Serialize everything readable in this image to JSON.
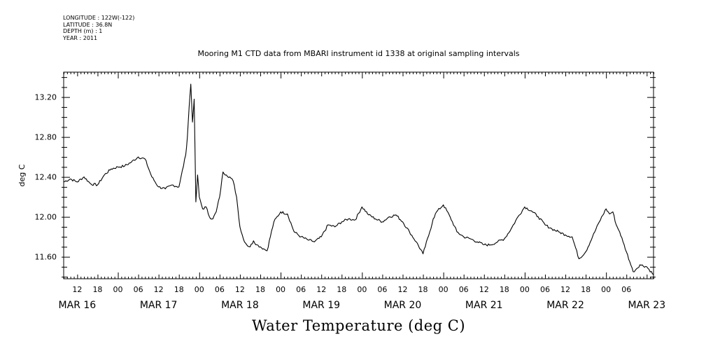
{
  "header": {
    "longitude": "LONGITUDE : 122W(-122)",
    "latitude": "LATITUDE : 36.8N",
    "depth": "DEPTH (m) : 1",
    "year": "YEAR : 2011"
  },
  "chart_data": {
    "type": "line",
    "title": "Mooring M1 CTD data from MBARI instrument id 1338 at original sampling intervals",
    "xlabel": "",
    "ylabel": "deg C",
    "footer": "Water Temperature (deg C)",
    "ylim": [
      11.38,
      13.45
    ],
    "xlim_hours": [
      -16,
      158
    ],
    "y_ticks": [
      "11.60",
      "12.00",
      "12.40",
      "12.80",
      "13.20"
    ],
    "x_hour_ticks": [
      "12",
      "18",
      "00",
      "06",
      "12",
      "18",
      "00",
      "06",
      "12",
      "18",
      "00",
      "06",
      "12",
      "18",
      "00",
      "06",
      "12",
      "18",
      "00",
      "06",
      "12",
      "18",
      "00",
      "06",
      "12",
      "18",
      "00",
      "06"
    ],
    "x_day_labels": [
      "MAR 16",
      "MAR 17",
      "MAR 18",
      "MAR 19",
      "MAR 20",
      "MAR 21",
      "MAR 22",
      "MAR 23"
    ],
    "series": [
      {
        "x": [
          -16,
          -14,
          -12,
          -10,
          -8,
          -6,
          -4,
          -2,
          0,
          2,
          4,
          6,
          8,
          10,
          12,
          14,
          16,
          18,
          20,
          20.5,
          21,
          21.5,
          22,
          22.5,
          23,
          23.5,
          24,
          25,
          26,
          27,
          28,
          29,
          30,
          31,
          32,
          33,
          34,
          35,
          36,
          37,
          38,
          39,
          40,
          41,
          42,
          43,
          44,
          46,
          48,
          50,
          52,
          54,
          56,
          58,
          60,
          62,
          64,
          66,
          68,
          70,
          72,
          74,
          76,
          78,
          80,
          82,
          84,
          86,
          88,
          90,
          92,
          93,
          94,
          96,
          98,
          100,
          102,
          104,
          106,
          108,
          110,
          112,
          114,
          116,
          118,
          120,
          122,
          124,
          126,
          128,
          130,
          132,
          134,
          136,
          138,
          140,
          142,
          144,
          145,
          146,
          147,
          148,
          149,
          150,
          151,
          152,
          153,
          154,
          156,
          158
        ],
        "y": [
          12.35,
          12.38,
          12.35,
          12.4,
          12.33,
          12.32,
          12.42,
          12.48,
          12.5,
          12.51,
          12.55,
          12.6,
          12.58,
          12.4,
          12.3,
          12.28,
          12.32,
          12.3,
          12.62,
          12.8,
          13.1,
          13.33,
          12.95,
          13.18,
          12.15,
          12.42,
          12.2,
          12.08,
          12.1,
          12.0,
          11.98,
          12.05,
          12.2,
          12.45,
          12.42,
          12.4,
          12.36,
          12.2,
          11.9,
          11.78,
          11.72,
          11.7,
          11.76,
          11.72,
          11.7,
          11.68,
          11.66,
          11.95,
          12.05,
          12.03,
          11.85,
          11.8,
          11.77,
          11.75,
          11.8,
          11.92,
          11.9,
          11.95,
          11.98,
          11.97,
          12.1,
          12.02,
          11.98,
          11.95,
          12.0,
          12.02,
          11.95,
          11.85,
          11.75,
          11.63,
          11.85,
          11.98,
          12.05,
          12.12,
          12.0,
          11.85,
          11.8,
          11.78,
          11.75,
          11.72,
          11.72,
          11.75,
          11.78,
          11.88,
          12.0,
          12.1,
          12.06,
          12.0,
          11.92,
          11.88,
          11.85,
          11.82,
          11.8,
          11.58,
          11.65,
          11.8,
          11.95,
          12.08,
          12.03,
          12.05,
          11.92,
          11.85,
          11.75,
          11.65,
          11.55,
          11.45,
          11.48,
          11.52,
          11.5,
          11.42
        ]
      }
    ]
  }
}
